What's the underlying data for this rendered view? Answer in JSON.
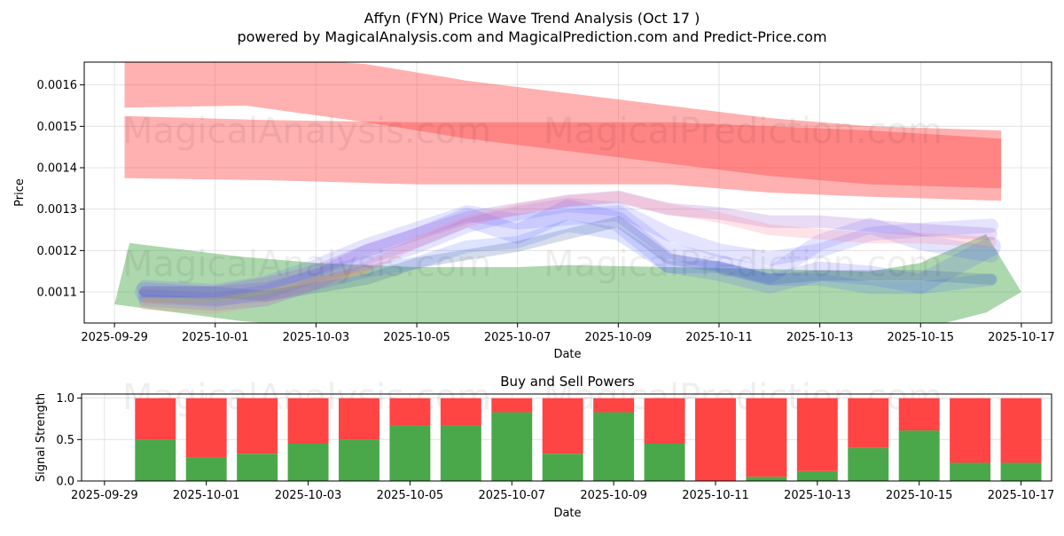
{
  "header": {
    "title_line1": "Affyn (FYN) Price Wave Trend Analysis (Oct 17 )",
    "title_line2": "powered by MagicalAnalysis.com and MagicalPrediction.com and Predict-Price.com"
  },
  "watermarks": [
    "MagicalAnalysis.com",
    "MagicalPrediction.com"
  ],
  "colors": {
    "red": "#ff4444",
    "green": "#4aa84a",
    "blue": "#5a5aff",
    "purple": "#9a5acc",
    "grid": "#dddddd"
  },
  "chart_data": [
    {
      "type": "area",
      "title": "",
      "xlabel": "Date",
      "ylabel": "Price",
      "ylim": [
        0.001025,
        0.001655
      ],
      "xlim_days": [
        -0.6,
        18.6
      ],
      "x_tick_labels": [
        "2025-09-29",
        "2025-10-01",
        "2025-10-03",
        "2025-10-05",
        "2025-10-07",
        "2025-10-09",
        "2025-10-11",
        "2025-10-13",
        "2025-10-15",
        "2025-10-17"
      ],
      "y_ticks": [
        0.0011,
        0.0012,
        0.0013,
        0.0014,
        0.0015,
        0.0016
      ],
      "y_tick_labels": [
        "0.0011",
        "0.0012",
        "0.0013",
        "0.0014",
        "0.0015",
        "0.0016"
      ],
      "grid": true,
      "bands": [
        {
          "name": "red upper band",
          "color": "#ff4444",
          "opacity": 0.42,
          "x": [
            0.2,
            2.6,
            5,
            7,
            9,
            11,
            13,
            15,
            17.6
          ],
          "upper": [
            0.00166,
            0.00167,
            0.00165,
            0.00161,
            0.00158,
            0.00155,
            0.00152,
            0.0015,
            0.00149
          ],
          "lower": [
            0.001545,
            0.00155,
            0.00151,
            0.00147,
            0.00144,
            0.00141,
            0.00138,
            0.00136,
            0.00135
          ]
        },
        {
          "name": "red lower band",
          "color": "#ff4444",
          "opacity": 0.42,
          "x": [
            0.2,
            3,
            6,
            9,
            11,
            13,
            15,
            17.6
          ],
          "upper": [
            0.001525,
            0.001515,
            0.00151,
            0.00151,
            0.00151,
            0.0015,
            0.00149,
            0.00147
          ],
          "lower": [
            0.001375,
            0.00137,
            0.00136,
            0.00136,
            0.00136,
            0.00134,
            0.00133,
            0.00132
          ]
        },
        {
          "name": "green band",
          "color": "#4aa84a",
          "opacity": 0.45,
          "x": [
            0,
            0.3,
            2.5,
            4,
            6,
            8,
            9,
            11,
            13,
            15,
            16,
            17.3,
            18
          ],
          "upper": [
            0.00107,
            0.001218,
            0.001185,
            0.00117,
            0.00116,
            0.00116,
            0.001165,
            0.00116,
            0.001155,
            0.00115,
            0.00117,
            0.00124,
            0.0011
          ],
          "lower": [
            0.00107,
            0.001065,
            0.00103,
            0.001015,
            0.00101,
            0.00101,
            0.00101,
            0.00101,
            0.00101,
            0.00101,
            0.00101,
            0.00105,
            0.0011
          ]
        }
      ],
      "wave_lines": [
        {
          "name": "blue wave 1",
          "color": "#5a5aff",
          "width": 22,
          "opacity": 0.18,
          "x": [
            0.6,
            2,
            3,
            4,
            5,
            6,
            7,
            8,
            9,
            10,
            11,
            12,
            13,
            14,
            15,
            16,
            17.4
          ],
          "y": [
            0.0011,
            0.00109,
            0.0011,
            0.00113,
            0.00119,
            0.00123,
            0.00128,
            0.00124,
            0.0013,
            0.00127,
            0.00117,
            0.00115,
            0.00112,
            0.00115,
            0.00114,
            0.00112,
            0.00121
          ]
        },
        {
          "name": "blue wave 2",
          "color": "#5a5aff",
          "width": 18,
          "opacity": 0.16,
          "x": [
            0.6,
            2,
            3,
            4,
            5,
            6,
            7,
            8,
            9,
            10,
            11,
            12,
            13,
            14,
            15,
            16,
            17.4
          ],
          "y": [
            0.00111,
            0.0011,
            0.00112,
            0.00116,
            0.00121,
            0.00125,
            0.00129,
            0.00127,
            0.00128,
            0.00129,
            0.0012,
            0.00117,
            0.00114,
            0.00122,
            0.00126,
            0.00122,
            0.00119
          ]
        },
        {
          "name": "blue wave 3",
          "color": "#5a5aff",
          "width": 16,
          "opacity": 0.16,
          "x": [
            0.6,
            2,
            3,
            4,
            5,
            6,
            7,
            8,
            9,
            10,
            11,
            12,
            13,
            14,
            15,
            16,
            17.4
          ],
          "y": [
            0.00109,
            0.00108,
            0.0011,
            0.00114,
            0.00117,
            0.00121,
            0.00126,
            0.00129,
            0.00131,
            0.0013,
            0.00124,
            0.0012,
            0.00118,
            0.0012,
            0.00124,
            0.00125,
            0.00126
          ]
        },
        {
          "name": "blue wave 4",
          "color": "#4a6aff",
          "width": 14,
          "opacity": 0.18,
          "x": [
            0.6,
            2,
            3,
            4,
            5,
            6,
            7,
            8,
            9,
            10,
            11,
            12,
            13,
            14,
            15,
            16,
            17.4
          ],
          "y": [
            0.00108,
            0.00107,
            0.00108,
            0.00112,
            0.00115,
            0.00117,
            0.00121,
            0.00122,
            0.00126,
            0.00124,
            0.00116,
            0.00116,
            0.00113,
            0.00113,
            0.00111,
            0.00111,
            0.00113
          ]
        },
        {
          "name": "slate wave",
          "color": "#4060a0",
          "width": 12,
          "opacity": 0.22,
          "x": [
            0.6,
            2,
            3,
            4,
            5,
            6,
            7,
            8,
            9,
            10,
            11,
            12,
            13,
            14,
            15,
            16,
            17.4
          ],
          "y": [
            0.0011,
            0.0011,
            0.00109,
            0.00111,
            0.00113,
            0.00117,
            0.00119,
            0.00121,
            0.00124,
            0.00127,
            0.00118,
            0.00116,
            0.00113,
            0.00114,
            0.00114,
            0.00114,
            0.00113
          ]
        },
        {
          "name": "purple wave",
          "color": "#9a5acc",
          "width": 14,
          "opacity": 0.22,
          "x": [
            0.6,
            2,
            3,
            4,
            5,
            6,
            7,
            8,
            9,
            10,
            11,
            12,
            13,
            14,
            15,
            16,
            17.4
          ],
          "y": [
            0.0011,
            0.0011,
            0.00112,
            0.00115,
            0.0012,
            0.00124,
            0.00128,
            0.0013,
            0.00132,
            0.00133,
            0.0013,
            0.00129,
            0.00127,
            0.00127,
            0.00126,
            0.00125,
            0.00124
          ]
        },
        {
          "name": "pink wave",
          "color": "#ff7a90",
          "width": 12,
          "opacity": 0.22,
          "x": [
            0.6,
            2,
            3,
            4,
            5,
            6,
            7,
            8,
            9,
            10,
            11,
            12,
            13,
            14,
            15,
            16,
            17.4
          ],
          "y": [
            0.00107,
            0.00106,
            0.00108,
            0.00112,
            0.00116,
            0.00122,
            0.00127,
            0.0013,
            0.00132,
            0.00133,
            0.0013,
            0.00128,
            0.00125,
            0.00124,
            0.00123,
            0.00123,
            0.00122
          ]
        },
        {
          "name": "orange wave",
          "color": "#e0a030",
          "width": 6,
          "opacity": 0.25,
          "x": [
            0.6,
            2,
            3,
            4,
            5
          ],
          "y": [
            0.00108,
            0.00108,
            0.0011,
            0.00113,
            0.00115
          ]
        }
      ]
    },
    {
      "type": "bar",
      "title": "Buy and Sell Powers",
      "xlabel": "Date",
      "ylabel": "Signal Strength",
      "ylim": [
        0,
        1.05
      ],
      "xlim_days": [
        -0.45,
        18.6
      ],
      "x_tick_labels": [
        "2025-09-29",
        "2025-10-01",
        "2025-10-03",
        "2025-10-05",
        "2025-10-07",
        "2025-10-09",
        "2025-10-11",
        "2025-10-13",
        "2025-10-15",
        "2025-10-17"
      ],
      "y_ticks": [
        0.0,
        0.5,
        1.0
      ],
      "y_tick_labels": [
        "0.0",
        "0.5",
        "1.0"
      ],
      "categories": [
        "2025-09-30",
        "2025-10-01",
        "2025-10-02",
        "2025-10-03",
        "2025-10-04",
        "2025-10-05",
        "2025-10-06",
        "2025-10-07",
        "2025-10-08",
        "2025-10-09",
        "2025-10-10",
        "2025-10-11",
        "2025-10-12",
        "2025-10-13",
        "2025-10-14",
        "2025-10-15",
        "2025-10-16",
        "2025-10-17"
      ],
      "series": [
        {
          "name": "Buy",
          "color": "#4aa84a",
          "values": [
            0.5,
            0.28,
            0.33,
            0.45,
            0.5,
            0.67,
            0.67,
            0.83,
            0.33,
            0.83,
            0.45,
            0.0,
            0.05,
            0.12,
            0.4,
            0.61,
            0.22,
            0.22
          ]
        },
        {
          "name": "Sell",
          "color": "#ff4444",
          "values": [
            0.5,
            0.72,
            0.67,
            0.55,
            0.5,
            0.33,
            0.33,
            0.17,
            0.67,
            0.17,
            0.55,
            1.0,
            0.95,
            0.88,
            0.6,
            0.39,
            0.78,
            0.78
          ]
        }
      ]
    }
  ]
}
